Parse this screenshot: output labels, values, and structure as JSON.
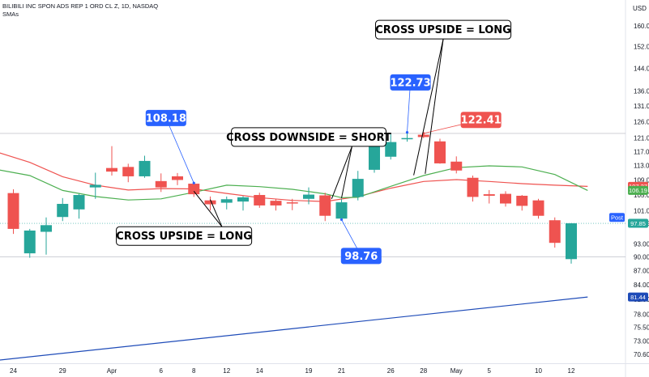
{
  "header": {
    "symbol_line": "BILIBILI INC SPON ADS REP 1 ORD CL Z, 1D, NASDAQ",
    "indicator": "SMAs"
  },
  "chart_data": {
    "type": "candlestick",
    "currency": "USD",
    "y_scale": "log",
    "ylim": [
      68,
      168
    ],
    "price_ticks": [
      160,
      152,
      144,
      136,
      131,
      126,
      121,
      117,
      113,
      109,
      105,
      101,
      97.85,
      93,
      90,
      87,
      84,
      81,
      78,
      75.5,
      73,
      70.6
    ],
    "x_tick_labels": [
      "24",
      "29",
      "Apr",
      "6",
      "8",
      "12",
      "14",
      "19",
      "21",
      "26",
      "28",
      "May",
      "5",
      "10",
      "12"
    ],
    "x_tick_days": [
      0,
      3,
      6,
      9,
      11,
      13,
      15,
      18,
      20,
      23,
      25,
      27,
      29,
      32,
      34
    ],
    "candles": [
      {
        "day": 0,
        "o": 105.5,
        "h": 106.5,
        "l": 95.3,
        "c": 96.5
      },
      {
        "day": 1,
        "o": 90.8,
        "h": 96.5,
        "l": 89.8,
        "c": 96.1
      },
      {
        "day": 2,
        "o": 95.8,
        "h": 99.3,
        "l": 90.5,
        "c": 97.4
      },
      {
        "day": 3,
        "o": 99.4,
        "h": 104.2,
        "l": 98.4,
        "c": 102.7
      },
      {
        "day": 4,
        "o": 101.3,
        "h": 105.3,
        "l": 99.0,
        "c": 105.0
      },
      {
        "day": 5,
        "o": 107.0,
        "h": 111.0,
        "l": 104.0,
        "c": 107.7
      },
      {
        "day": 6,
        "o": 112.3,
        "h": 118.6,
        "l": 110.2,
        "c": 111.3
      },
      {
        "day": 7,
        "o": 112.6,
        "h": 113.5,
        "l": 108.4,
        "c": 110.0
      },
      {
        "day": 8,
        "o": 110.0,
        "h": 115.8,
        "l": 109.6,
        "c": 114.3
      },
      {
        "day": 9,
        "o": 108.7,
        "h": 110.8,
        "l": 105.8,
        "c": 107.0
      },
      {
        "day": 10,
        "o": 110.0,
        "h": 110.9,
        "l": 107.6,
        "c": 109.0
      },
      {
        "day": 11,
        "o": 108.0,
        "h": 108.18,
        "l": 104.5,
        "c": 105.2
      },
      {
        "day": 12,
        "o": 103.6,
        "h": 104.6,
        "l": 101.0,
        "c": 102.6
      },
      {
        "day": 13,
        "o": 103.0,
        "h": 104.6,
        "l": 101.3,
        "c": 103.9
      },
      {
        "day": 14,
        "o": 103.3,
        "h": 104.7,
        "l": 101.0,
        "c": 104.4
      },
      {
        "day": 15,
        "o": 105.0,
        "h": 105.6,
        "l": 101.7,
        "c": 102.3
      },
      {
        "day": 16,
        "o": 103.5,
        "h": 104.0,
        "l": 101.0,
        "c": 102.3
      },
      {
        "day": 17,
        "o": 103.1,
        "h": 104.0,
        "l": 101.1,
        "c": 102.9
      },
      {
        "day": 18,
        "o": 104.0,
        "h": 107.0,
        "l": 102.6,
        "c": 105.1
      },
      {
        "day": 19,
        "o": 104.9,
        "h": 105.6,
        "l": 98.4,
        "c": 99.7
      },
      {
        "day": 20,
        "o": 99.0,
        "h": 104.0,
        "l": 98.76,
        "c": 103.1
      },
      {
        "day": 21,
        "o": 104.5,
        "h": 111.5,
        "l": 103.6,
        "c": 109.3
      },
      {
        "day": 22,
        "o": 111.8,
        "h": 122.0,
        "l": 111.0,
        "c": 119.3
      },
      {
        "day": 23,
        "o": 115.5,
        "h": 122.2,
        "l": 114.7,
        "c": 119.8
      },
      {
        "day": 24,
        "o": 120.7,
        "h": 122.73,
        "l": 119.9,
        "c": 121.0
      },
      {
        "day": 25,
        "o": 122.0,
        "h": 122.41,
        "l": 121.0,
        "c": 121.3
      },
      {
        "day": 26,
        "o": 120.0,
        "h": 120.8,
        "l": 113.5,
        "c": 113.6
      },
      {
        "day": 27,
        "o": 114.1,
        "h": 115.6,
        "l": 110.8,
        "c": 111.6
      },
      {
        "day": 28,
        "o": 109.6,
        "h": 110.2,
        "l": 103.3,
        "c": 104.5
      },
      {
        "day": 29,
        "o": 105.2,
        "h": 106.3,
        "l": 102.8,
        "c": 104.8
      },
      {
        "day": 30,
        "o": 105.3,
        "h": 106.0,
        "l": 102.0,
        "c": 102.8
      },
      {
        "day": 31,
        "o": 104.8,
        "h": 105.0,
        "l": 101.0,
        "c": 102.2
      },
      {
        "day": 32,
        "o": 103.6,
        "h": 104.0,
        "l": 99.0,
        "c": 99.7
      },
      {
        "day": 33,
        "o": 98.6,
        "h": 99.3,
        "l": 92.1,
        "c": 93.2
      },
      {
        "day": 34,
        "o": 89.5,
        "h": 97.9,
        "l": 88.5,
        "c": 97.85
      }
    ],
    "series": [
      {
        "kind": "sma",
        "color": "#ef5350",
        "points": [
          [
            -1.5,
            117.6
          ],
          [
            1,
            113.9
          ],
          [
            3,
            109.9
          ],
          [
            5,
            107.6
          ],
          [
            7,
            106.3
          ],
          [
            9,
            106.7
          ],
          [
            11,
            106.6
          ],
          [
            13,
            105.4
          ],
          [
            15,
            104.3
          ],
          [
            17,
            103.6
          ],
          [
            19,
            103.3
          ],
          [
            21,
            104.6
          ],
          [
            23,
            106.8
          ],
          [
            25,
            108.6
          ],
          [
            27,
            109.1
          ],
          [
            29,
            108.6
          ],
          [
            31,
            108.0
          ],
          [
            33,
            107.6
          ],
          [
            35,
            107.27
          ]
        ]
      },
      {
        "kind": "sma",
        "color": "#4caf50",
        "points": [
          [
            -1.5,
            112.3
          ],
          [
            1,
            110.2
          ],
          [
            3,
            106.2
          ],
          [
            5,
            104.6
          ],
          [
            7,
            103.7
          ],
          [
            9,
            104.0
          ],
          [
            11,
            105.7
          ],
          [
            13,
            107.6
          ],
          [
            15,
            107.2
          ],
          [
            17,
            106.5
          ],
          [
            19,
            105.3
          ],
          [
            20,
            104.3
          ],
          [
            21,
            104.4
          ],
          [
            23,
            107.3
          ],
          [
            25,
            110.2
          ],
          [
            27,
            112.4
          ],
          [
            29,
            112.9
          ],
          [
            31,
            112.6
          ],
          [
            33,
            110.5
          ],
          [
            35,
            106.19
          ]
        ]
      },
      {
        "kind": "sma",
        "color": "#1e4bb8",
        "points": [
          [
            -1.5,
            69.4
          ],
          [
            35,
            81.44
          ]
        ]
      }
    ],
    "last_values": [
      {
        "label": "107.27",
        "value": 107.27,
        "color": "#ef5350"
      },
      {
        "label": "106.19",
        "value": 106.19,
        "color": "#4caf50"
      },
      {
        "label": "97.85",
        "value": 97.85,
        "color": "#26a69a"
      },
      {
        "label": "81.44",
        "value": 81.44,
        "color": "#1e4bb8"
      }
    ],
    "post_label": "Post",
    "reference_lines": [
      122.41,
      90.0
    ],
    "price_callouts": [
      {
        "label": "108.18",
        "day": 11,
        "value": 108.18,
        "color": "#2962ff",
        "box_day": 9.3,
        "box_value": 127.2
      },
      {
        "label": "98.76",
        "day": 20,
        "value": 98.76,
        "color": "#2962ff",
        "box_day": 21.2,
        "box_value": 90.2
      },
      {
        "label": "122.73",
        "day": 24,
        "value": 122.73,
        "color": "#2962ff",
        "box_day": 24.2,
        "box_value": 139.0
      },
      {
        "label": "122.41",
        "day": 25,
        "value": 122.41,
        "color": "#ef5350",
        "box_day": 28.5,
        "box_value": 126.6
      }
    ],
    "text_callouts": [
      {
        "label": "CROSS UPSIDE = LONG",
        "box_day": 10.4,
        "box_value": 94.8,
        "arrow_to": [
          [
            12,
            103.8
          ],
          [
            11,
            106.0
          ]
        ]
      },
      {
        "label": "CROSS DOWNSIDE = SHORT",
        "box_day": 18.0,
        "box_value": 121.3,
        "arrow_to": [
          [
            20,
            104.2
          ],
          [
            19.4,
            104.0
          ]
        ]
      },
      {
        "label": "CROSS UPSIDE = LONG",
        "box_day": 26.2,
        "box_value": 158.5,
        "arrow_to": [
          [
            24.4,
            110.3
          ],
          [
            25.1,
            110.7
          ]
        ]
      }
    ]
  }
}
